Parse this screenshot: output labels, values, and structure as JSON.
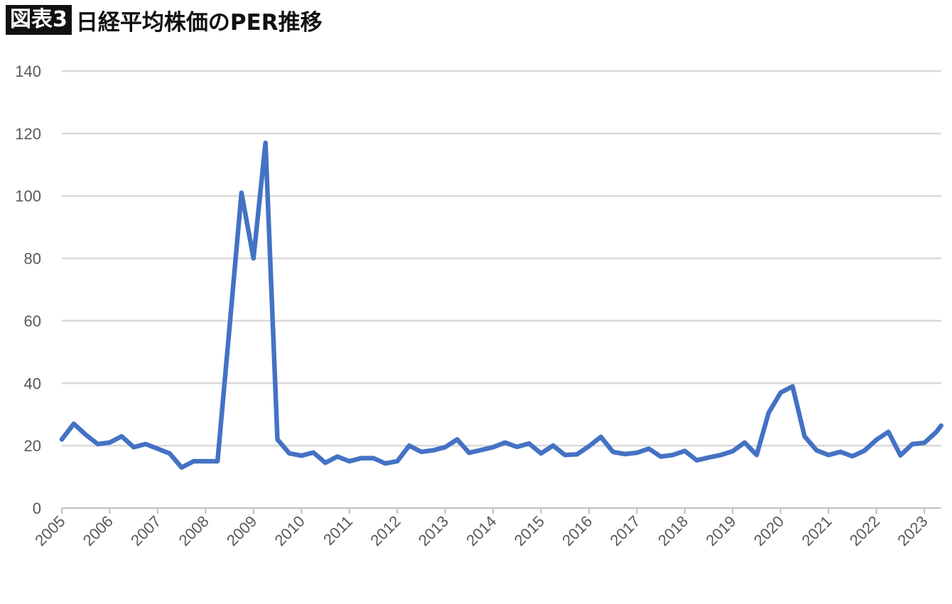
{
  "title": {
    "badge": "図表3",
    "text": "日経平均株価のPER推移"
  },
  "chart_data": {
    "type": "line",
    "title": "図表3 日経平均株価のPER推移",
    "xlabel": "",
    "ylabel": "",
    "ylim": [
      0,
      140
    ],
    "yticks": [
      0,
      20,
      40,
      60,
      80,
      100,
      120,
      140
    ],
    "xlim": [
      2005,
      2023.35
    ],
    "xticks": [
      "2005",
      "2006",
      "2007",
      "2008",
      "2009",
      "2010",
      "2011",
      "2012",
      "2013",
      "2014",
      "2015",
      "2016",
      "2017",
      "2018",
      "2019",
      "2020",
      "2021",
      "2022",
      "2023"
    ],
    "grid": true,
    "line_color": "#4472C4",
    "series": [
      {
        "name": "PER",
        "x": [
          2005,
          2005.25,
          2005.5,
          2005.75,
          2006,
          2006.25,
          2006.5,
          2006.75,
          2007,
          2007.25,
          2007.5,
          2007.75,
          2008,
          2008.25,
          2008.5,
          2008.75,
          2009,
          2009.25,
          2009.5,
          2009.75,
          2010,
          2010.25,
          2010.5,
          2010.75,
          2011,
          2011.25,
          2011.5,
          2011.75,
          2012,
          2012.25,
          2012.5,
          2012.75,
          2013,
          2013.25,
          2013.5,
          2013.75,
          2014,
          2014.25,
          2014.5,
          2014.75,
          2015,
          2015.25,
          2015.5,
          2015.75,
          2016,
          2016.25,
          2016.5,
          2016.75,
          2017,
          2017.25,
          2017.5,
          2017.75,
          2018,
          2018.25,
          2018.5,
          2018.75,
          2019,
          2019.25,
          2019.5,
          2019.75,
          2020,
          2020.25,
          2020.5,
          2020.75,
          2021,
          2021.25,
          2021.5,
          2021.75,
          2022,
          2022.25,
          2022.5,
          2022.75,
          2023,
          2023.25,
          2023.35
        ],
        "values": [
          22,
          27,
          23.5,
          20.5,
          21,
          23,
          19.5,
          20.5,
          19,
          17.5,
          13,
          15,
          15,
          15,
          58,
          101,
          80,
          117,
          22,
          17.5,
          16.8,
          17.8,
          14.5,
          16.5,
          15,
          16,
          16,
          14.3,
          15,
          20,
          18,
          18.5,
          19.5,
          22,
          17.7,
          18.6,
          19.5,
          21,
          19.6,
          20.7,
          17.5,
          20,
          17,
          17.2,
          19.8,
          22.8,
          18,
          17.3,
          17.7,
          19,
          16.5,
          17,
          18.3,
          15.3,
          16.2,
          17,
          18.2,
          21,
          17,
          30.5,
          37,
          39,
          23,
          18.5,
          17,
          18,
          16.6,
          18.4,
          21.9,
          24.4,
          16.9,
          20.5,
          20.9,
          24.4,
          26.4
        ]
      }
    ]
  }
}
